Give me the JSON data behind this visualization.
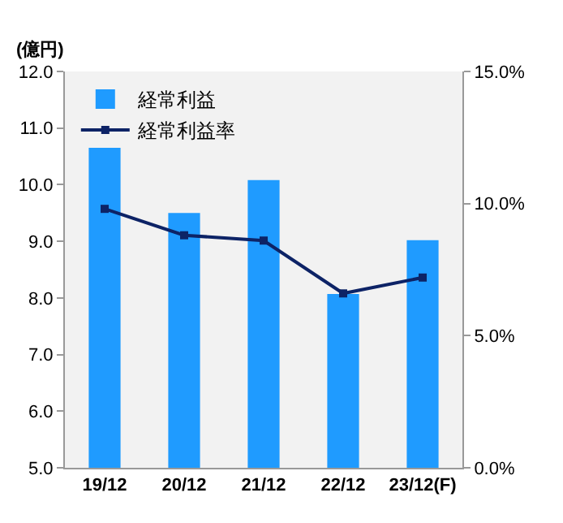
{
  "chart_data": {
    "type": "bar",
    "ylabel": "(億円)",
    "categories": [
      "19/12",
      "20/12",
      "21/12",
      "22/12",
      "23/12(F)"
    ],
    "series": [
      {
        "name": "経常利益",
        "color": "#1f9bff",
        "values": [
          10.65,
          9.5,
          10.08,
          8.07,
          9.02
        ]
      },
      {
        "name": "経常利益率",
        "type": "line",
        "axis": "y2",
        "color": "#0d2366",
        "marker": "square",
        "values": [
          9.8,
          8.8,
          8.6,
          6.6,
          7.2
        ]
      }
    ],
    "ylim": [
      5,
      12
    ],
    "yticks": [
      {
        "value": 5,
        "label": "5.0"
      },
      {
        "value": 6,
        "label": "6.0"
      },
      {
        "value": 7,
        "label": "7.0"
      },
      {
        "value": 8,
        "label": "8.0"
      },
      {
        "value": 9,
        "label": "9.0"
      },
      {
        "value": 10,
        "label": "10.0"
      },
      {
        "value": 11,
        "label": "11.0"
      },
      {
        "value": 12,
        "label": "12.0"
      }
    ],
    "y2lim": [
      0,
      15
    ],
    "y2ticks": [
      {
        "value": 0,
        "label": "0.0%"
      },
      {
        "value": 5,
        "label": "5.0%"
      },
      {
        "value": 10,
        "label": "10.0%"
      },
      {
        "value": 15,
        "label": "15.0%"
      }
    ],
    "grid": false,
    "legend": "top left"
  }
}
